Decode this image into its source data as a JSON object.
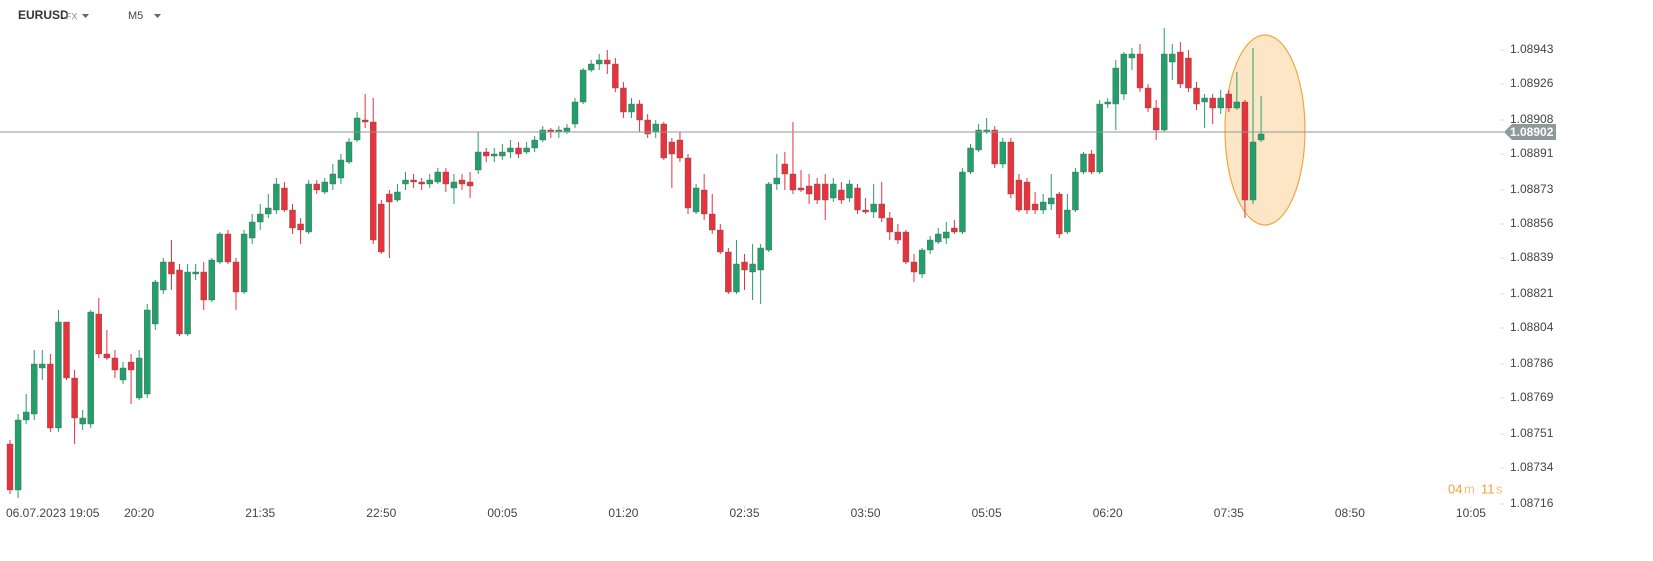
{
  "chart_data": {
    "type": "candlestick",
    "symbol": "EURUSD",
    "market": "FX",
    "timeframe": "M5",
    "timer": {
      "minutes": "04",
      "minutes_unit": "m",
      "seconds": "11",
      "seconds_unit": "s"
    },
    "up_color": "#22a06b",
    "down_color": "#e8323c",
    "current_price": 1.08902,
    "xlim": [
      -1.24,
      184.6
    ],
    "xticks": [
      {
        "value": 1,
        "label": "06.07.2023  19:05"
      },
      {
        "value": 16,
        "label": "20:20"
      },
      {
        "value": 31,
        "label": "21:35"
      },
      {
        "value": 46,
        "label": "22:50"
      },
      {
        "value": 61,
        "label": "00:05"
      },
      {
        "value": 76,
        "label": "01:20"
      },
      {
        "value": 91,
        "label": "02:35"
      },
      {
        "value": 106,
        "label": "03:50"
      },
      {
        "value": 121,
        "label": "05:05"
      },
      {
        "value": 136,
        "label": "06:20"
      },
      {
        "value": 151,
        "label": "07:35"
      },
      {
        "value": 166,
        "label": "08:50"
      },
      {
        "value": 181,
        "label": "10:05"
      }
    ],
    "ylim": [
      1.08715,
      1.08968
    ],
    "yticks": [
      1.08943,
      1.08926,
      1.08908,
      1.08891,
      1.08873,
      1.08856,
      1.08839,
      1.08821,
      1.08804,
      1.08786,
      1.08769,
      1.08751,
      1.08734,
      1.08716
    ],
    "open": [
      1.08746,
      1.08723,
      1.08758,
      1.08761,
      1.08784,
      1.08786,
      1.08754,
      1.08807,
      1.08779,
      1.08756,
      1.08756,
      1.08811,
      1.08791,
      1.08789,
      1.08778,
      1.08787,
      1.08769,
      1.08771,
      1.08806,
      1.08823,
      1.08837,
      1.08833,
      1.08801,
      1.08831,
      1.08832,
      1.08818,
      1.08837,
      1.08851,
      1.08837,
      1.08822,
      1.08849,
      1.08857,
      1.08861,
      1.08863,
      1.08874,
      1.08863,
      1.08856,
      1.08852,
      1.08876,
      1.08872,
      1.08876,
      1.08879,
      1.08887,
      1.08898,
      1.08908,
      1.08907,
      1.08866,
      1.08871,
      1.08868,
      1.08876,
      1.08878,
      1.08877,
      1.08876,
      1.08877,
      1.08882,
      1.08874,
      1.08878,
      1.08877,
      1.08883,
      1.08892,
      1.0889,
      1.0889,
      1.08892,
      1.08894,
      1.08892,
      1.08894,
      1.08898,
      1.08903,
      1.08902,
      1.08902,
      1.08906,
      1.08917,
      1.08933,
      1.08936,
      1.08938,
      1.08936,
      1.08924,
      1.08912,
      1.08916,
      1.08908,
      1.08902,
      1.08906,
      1.08897,
      1.08898,
      1.08889,
      1.08862,
      1.08873,
      1.08861,
      1.08853,
      1.08842,
      1.08822,
      1.08837,
      1.08832,
      1.08833,
      1.08843,
      1.08876,
      1.08886,
      1.08881,
      1.08874,
      1.08875,
      1.08876,
      1.08876,
      1.08869,
      1.08873,
      1.08869,
      1.08874,
      1.08863,
      1.08862,
      1.08866,
      1.08859,
      1.08852,
      1.08852,
      1.08837,
      1.08831,
      1.08843,
      1.08847,
      1.08849,
      1.08854,
      1.08852,
      1.08882,
      1.08893,
      1.08902,
      1.08903,
      1.08886,
      1.08897,
      1.08878,
      1.08877,
      1.08866,
      1.08863,
      1.08866,
      1.08871,
      1.08852,
      1.08863,
      1.08882,
      1.08891,
      1.08882,
      1.08916,
      1.08916,
      1.08921,
      1.08939,
      1.08941,
      1.08924,
      1.08914,
      1.08903,
      1.08937,
      1.08942,
      1.08939,
      1.08924,
      1.08917,
      1.08919,
      1.08914,
      1.08921,
      1.08914,
      1.08917,
      1.08868,
      1.08898
    ],
    "high": [
      1.08748,
      1.08761,
      1.08771,
      1.08793,
      1.08793,
      1.08791,
      1.08813,
      1.08807,
      1.08783,
      1.08763,
      1.08813,
      1.08819,
      1.08803,
      1.08793,
      1.08787,
      1.08791,
      1.08793,
      1.08816,
      1.08828,
      1.08839,
      1.08848,
      1.08836,
      1.08836,
      1.08836,
      1.08837,
      1.08839,
      1.08852,
      1.08853,
      1.08839,
      1.08853,
      1.08861,
      1.08866,
      1.08871,
      1.08879,
      1.08877,
      1.08866,
      1.08859,
      1.08878,
      1.08878,
      1.08879,
      1.08886,
      1.08891,
      1.08899,
      1.08912,
      1.08921,
      1.08919,
      1.08868,
      1.08873,
      1.08876,
      1.08882,
      1.08881,
      1.08879,
      1.08881,
      1.08884,
      1.08884,
      1.08881,
      1.08881,
      1.08882,
      1.08902,
      1.08894,
      1.08894,
      1.08896,
      1.08898,
      1.08897,
      1.08897,
      1.089,
      1.08905,
      1.08904,
      1.08905,
      1.08906,
      1.08919,
      1.08934,
      1.08938,
      1.08941,
      1.08943,
      1.08939,
      1.08927,
      1.08919,
      1.08918,
      1.08911,
      1.08908,
      1.08907,
      1.08899,
      1.08902,
      1.08891,
      1.08876,
      1.08881,
      1.08871,
      1.08856,
      1.08844,
      1.08848,
      1.08841,
      1.08846,
      1.08846,
      1.08877,
      1.08891,
      1.08892,
      1.08907,
      1.08883,
      1.08881,
      1.08879,
      1.08881,
      1.08879,
      1.08877,
      1.08878,
      1.08876,
      1.08869,
      1.08876,
      1.08877,
      1.08862,
      1.08856,
      1.08853,
      1.08841,
      1.08844,
      1.0885,
      1.08854,
      1.08857,
      1.08858,
      1.08884,
      1.08896,
      1.08906,
      1.08909,
      1.08905,
      1.08899,
      1.08899,
      1.08881,
      1.08879,
      1.08872,
      1.08871,
      1.08881,
      1.08872,
      1.08871,
      1.08884,
      1.08892,
      1.08893,
      1.08918,
      1.08919,
      1.08938,
      1.08942,
      1.08944,
      1.08946,
      1.08926,
      1.08918,
      1.08954,
      1.08946,
      1.08947,
      1.08943,
      1.08927,
      1.08921,
      1.08921,
      1.08923,
      1.08923,
      1.08932,
      1.08918,
      1.08944,
      1.0892
    ],
    "low": [
      1.08721,
      1.08719,
      1.08756,
      1.08758,
      1.08778,
      1.08752,
      1.08752,
      1.08778,
      1.08746,
      1.08753,
      1.08754,
      1.08789,
      1.08788,
      1.08779,
      1.08776,
      1.08766,
      1.08768,
      1.08769,
      1.08803,
      1.08821,
      1.08823,
      1.088,
      1.088,
      1.08828,
      1.08813,
      1.08817,
      1.08836,
      1.08836,
      1.08813,
      1.08821,
      1.08846,
      1.08853,
      1.08859,
      1.08861,
      1.08862,
      1.08851,
      1.08846,
      1.08851,
      1.08871,
      1.08871,
      1.08873,
      1.08876,
      1.08886,
      1.08897,
      1.08904,
      1.08846,
      1.08841,
      1.08839,
      1.08867,
      1.08873,
      1.08874,
      1.08873,
      1.08874,
      1.08876,
      1.08872,
      1.08866,
      1.08873,
      1.08869,
      1.08881,
      1.08887,
      1.08887,
      1.08888,
      1.08889,
      1.08889,
      1.08891,
      1.08892,
      1.08897,
      1.08899,
      1.08899,
      1.08901,
      1.08904,
      1.08916,
      1.08932,
      1.08933,
      1.08931,
      1.08922,
      1.08909,
      1.08909,
      1.08902,
      1.08899,
      1.08899,
      1.08888,
      1.08874,
      1.08887,
      1.08861,
      1.08861,
      1.08858,
      1.08851,
      1.08841,
      1.08821,
      1.08821,
      1.08823,
      1.08818,
      1.08816,
      1.08842,
      1.08873,
      1.08873,
      1.08871,
      1.08872,
      1.08866,
      1.08866,
      1.08858,
      1.08867,
      1.08866,
      1.08867,
      1.08861,
      1.08861,
      1.08859,
      1.08857,
      1.08848,
      1.08846,
      1.08836,
      1.08827,
      1.08829,
      1.08841,
      1.08846,
      1.08846,
      1.08851,
      1.08851,
      1.08881,
      1.08892,
      1.08901,
      1.08884,
      1.08884,
      1.08869,
      1.08862,
      1.08861,
      1.08861,
      1.08861,
      1.08863,
      1.08849,
      1.08851,
      1.08862,
      1.08881,
      1.08881,
      1.08881,
      1.08914,
      1.08903,
      1.08918,
      1.08933,
      1.08922,
      1.08912,
      1.08898,
      1.08902,
      1.08928,
      1.08924,
      1.08922,
      1.08913,
      1.08904,
      1.08906,
      1.08911,
      1.08912,
      1.08913,
      1.08859,
      1.08866,
      1.08897
    ],
    "close": [
      1.08723,
      1.08758,
      1.08762,
      1.08786,
      1.08786,
      1.08754,
      1.08807,
      1.08779,
      1.08759,
      1.08759,
      1.08812,
      1.08791,
      1.08789,
      1.08783,
      1.08784,
      1.08783,
      1.08789,
      1.08813,
      1.08827,
      1.08837,
      1.08831,
      1.08801,
      1.08832,
      1.08832,
      1.08818,
      1.08838,
      1.08851,
      1.08837,
      1.08822,
      1.08851,
      1.08857,
      1.08861,
      1.08864,
      1.08876,
      1.08863,
      1.08854,
      1.08853,
      1.08876,
      1.08873,
      1.08877,
      1.08881,
      1.08888,
      1.08897,
      1.08909,
      1.08907,
      1.08848,
      1.08842,
      1.08867,
      1.08872,
      1.08878,
      1.08877,
      1.08876,
      1.08878,
      1.08882,
      1.08876,
      1.08877,
      1.08876,
      1.08875,
      1.08892,
      1.0889,
      1.08891,
      1.08892,
      1.08894,
      1.08891,
      1.08894,
      1.08898,
      1.08903,
      1.08902,
      1.08903,
      1.08904,
      1.08917,
      1.08933,
      1.08936,
      1.08938,
      1.08936,
      1.08924,
      1.08912,
      1.08916,
      1.08908,
      1.08901,
      1.08906,
      1.08889,
      1.08891,
      1.08889,
      1.08864,
      1.08874,
      1.08861,
      1.08853,
      1.08842,
      1.08822,
      1.08836,
      1.08833,
      1.08836,
      1.08844,
      1.08876,
      1.08879,
      1.08881,
      1.08873,
      1.08873,
      1.08871,
      1.08868,
      1.08868,
      1.08876,
      1.08868,
      1.08876,
      1.08863,
      1.08862,
      1.08866,
      1.08859,
      1.08852,
      1.08848,
      1.08837,
      1.08832,
      1.08843,
      1.08848,
      1.08851,
      1.08852,
      1.08852,
      1.08882,
      1.08894,
      1.08903,
      1.08903,
      1.08886,
      1.08897,
      1.08871,
      1.08863,
      1.08863,
      1.08863,
      1.08867,
      1.08869,
      1.08851,
      1.08863,
      1.08882,
      1.08891,
      1.08882,
      1.08916,
      1.08917,
      1.08934,
      1.08941,
      1.08941,
      1.08924,
      1.08914,
      1.08903,
      1.08941,
      1.08941,
      1.08926,
      1.08924,
      1.08916,
      1.08919,
      1.08914,
      1.08919,
      1.08914,
      1.08917,
      1.08868,
      1.08897,
      1.08901
    ]
  }
}
